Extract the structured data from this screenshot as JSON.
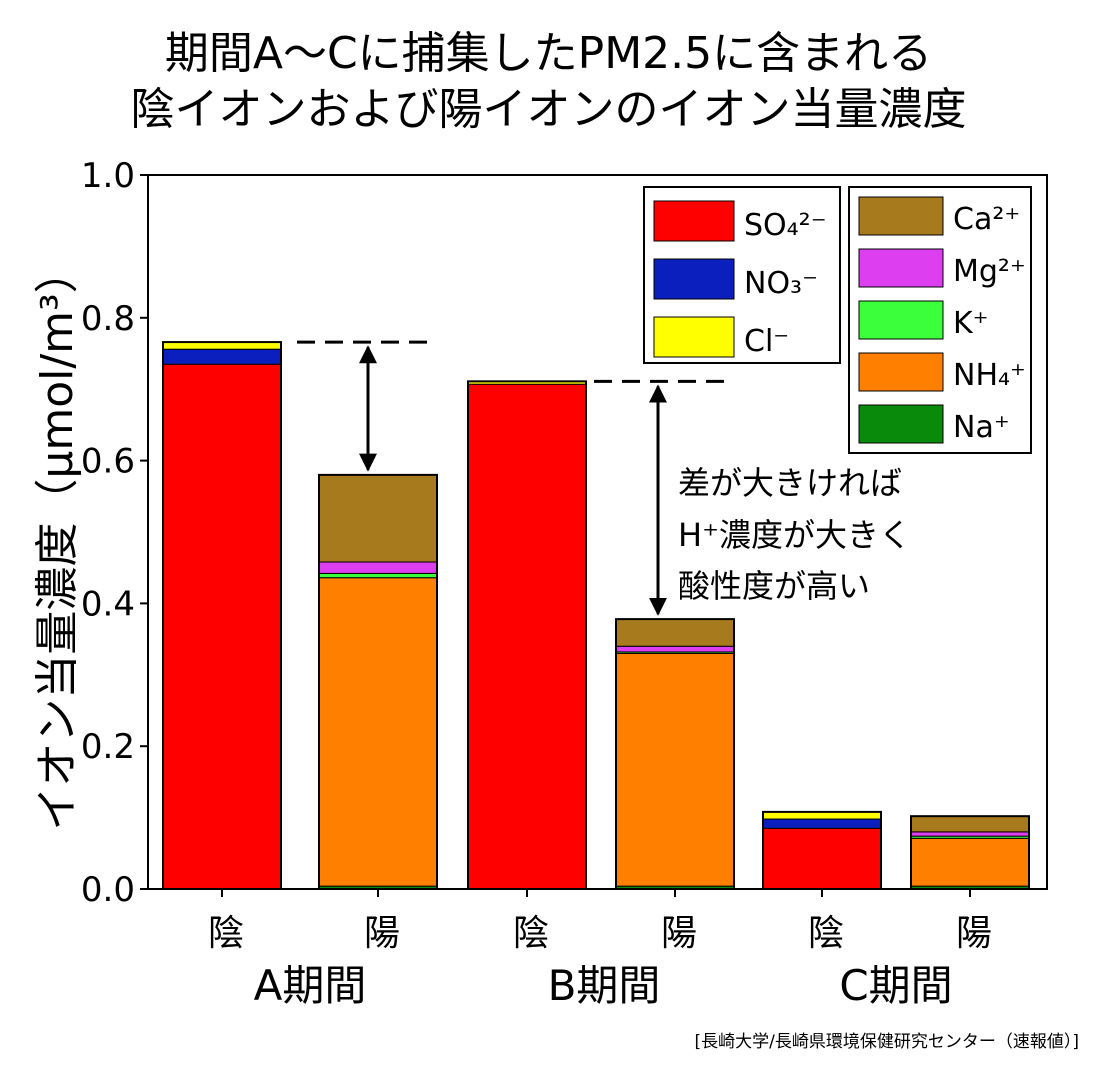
{
  "title_lines": [
    "期間A〜Cに捕集したPM2.5に含まれる",
    "陰イオンおよび陽イオンのイオン当量濃度"
  ],
  "source_note": "[長崎大学/長崎県環境保健研究センター（速報値）]",
  "annotation_lines": [
    "差が大きければ",
    "H⁺濃度が大きく",
    "酸性度が高い"
  ],
  "chart_data": {
    "type": "bar",
    "stacked": true,
    "ylabel": "イオン当量濃度（μmol/m³）",
    "ylim": [
      0,
      1.0
    ],
    "yticks": [
      "0.0",
      "0.2",
      "0.4",
      "0.6",
      "0.8",
      "1.0"
    ],
    "categories": [
      "陰",
      "陽",
      "陰",
      "陽",
      "陰",
      "陽"
    ],
    "groups": [
      "A期間",
      "B期間",
      "C期間"
    ],
    "legend_position": "top-right",
    "series": [
      {
        "name": "SO₄²⁻",
        "color": "#ff0000",
        "values": [
          0.735,
          0,
          0.707,
          0,
          0.085,
          0
        ]
      },
      {
        "name": "NO₃⁻",
        "color": "#0b1fbf",
        "values": [
          0.021,
          0,
          0.0,
          0,
          0.013,
          0
        ]
      },
      {
        "name": "Cl⁻",
        "color": "#ffff00",
        "values": [
          0.01,
          0,
          0.004,
          0,
          0.01,
          0
        ]
      },
      {
        "name": "Na⁺",
        "color": "#0a8a0a",
        "values": [
          0,
          0.004,
          0,
          0.004,
          0,
          0.004
        ]
      },
      {
        "name": "NH₄⁺",
        "color": "#ff7f00",
        "values": [
          0,
          0.432,
          0,
          0.326,
          0,
          0.067
        ]
      },
      {
        "name": "K⁺",
        "color": "#3cff3c",
        "values": [
          0,
          0.006,
          0,
          0.002,
          0,
          0.003
        ]
      },
      {
        "name": "Mg²⁺",
        "color": "#dd3ff0",
        "values": [
          0,
          0.016,
          0,
          0.008,
          0,
          0.006
        ]
      },
      {
        "name": "Ca²⁺",
        "color": "#a77a1d",
        "values": [
          0,
          0.122,
          0,
          0.038,
          0,
          0.022
        ]
      }
    ],
    "legend_left": [
      "SO₄²⁻",
      "NO₃⁻",
      "Cl⁻"
    ],
    "legend_right": [
      "Ca²⁺",
      "Mg²⁺",
      "K⁺",
      "NH₄⁺",
      "Na⁺"
    ]
  }
}
